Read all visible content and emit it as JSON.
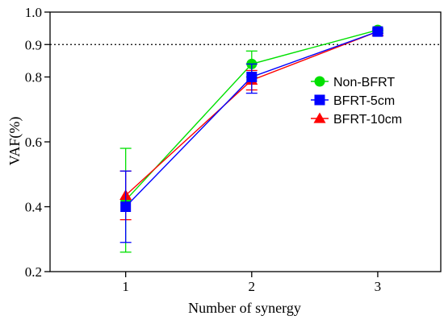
{
  "chart_data": {
    "type": "line",
    "xlabel": "Number of synergy",
    "ylabel": "VAF(%)",
    "x": [
      1,
      2,
      3
    ],
    "xticks": [
      "1",
      "2",
      "3"
    ],
    "xlim": [
      0.4,
      3.5
    ],
    "ylim": [
      0.2,
      1.0
    ],
    "yticks": [
      "0.2",
      "0.4",
      "0.6",
      "0.8",
      "0.9",
      "1.0"
    ],
    "ytick_values": [
      0.2,
      0.4,
      0.6,
      0.8,
      0.9,
      1.0
    ],
    "reference_line": 0.9,
    "legend_position": "right",
    "series": [
      {
        "name": "Non-BFRT",
        "marker": "circle",
        "color": "#00e000",
        "values": [
          0.42,
          0.84,
          0.945
        ],
        "err_low": [
          0.26,
          0.8,
          0.94
        ],
        "err_high": [
          0.58,
          0.88,
          0.95
        ]
      },
      {
        "name": "BFRT-5cm",
        "marker": "square",
        "color": "#0000ff",
        "values": [
          0.4,
          0.8,
          0.94
        ],
        "err_low": [
          0.29,
          0.75,
          0.935
        ],
        "err_high": [
          0.51,
          0.84,
          0.945
        ]
      },
      {
        "name": "BFRT-10cm",
        "marker": "triangle",
        "color": "#ff0000",
        "values": [
          0.435,
          0.79,
          0.94
        ],
        "err_low": [
          0.36,
          0.76,
          0.935
        ],
        "err_high": [
          0.51,
          0.82,
          0.945
        ]
      }
    ]
  }
}
